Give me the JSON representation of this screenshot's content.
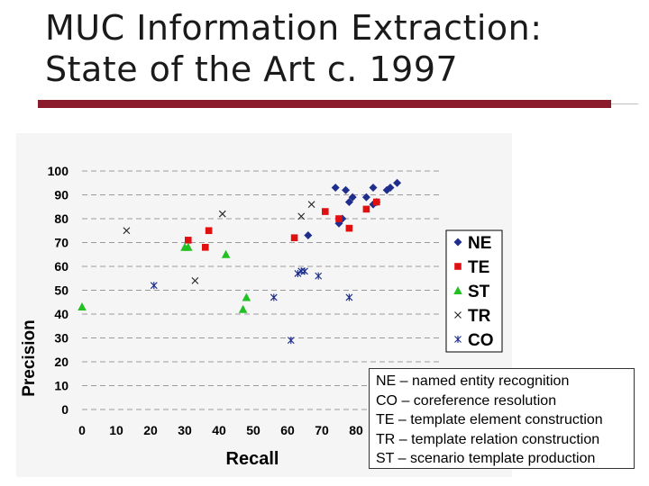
{
  "slide": {
    "title_line1": "MUC Information Extraction:",
    "title_line2": "State of the Art c. 1997",
    "accent_color": "#8b1a2b"
  },
  "definitions": [
    "NE – named entity recognition",
    "CO – coreference resolution",
    "TE – template element construction",
    "TR – template relation construction",
    "ST – scenario template production"
  ],
  "chart_data": {
    "type": "scatter",
    "xlabel": "Recall",
    "ylabel": "Precision",
    "xlim": [
      0,
      100
    ],
    "ylim": [
      0,
      100
    ],
    "xticks": [
      0,
      10,
      20,
      30,
      40,
      50,
      60,
      70,
      80
    ],
    "yticks": [
      0,
      10,
      20,
      30,
      40,
      50,
      60,
      70,
      80,
      90,
      100
    ],
    "grid": "horizontal dashed",
    "legend_position": "right",
    "series": [
      {
        "name": "NE",
        "marker": "diamond",
        "color": "#1f2e8c",
        "points": [
          [
            66,
            73
          ],
          [
            74,
            93
          ],
          [
            77,
            92
          ],
          [
            75,
            78
          ],
          [
            76,
            80
          ],
          [
            78,
            87
          ],
          [
            79,
            89
          ],
          [
            83,
            89
          ],
          [
            85,
            86
          ],
          [
            85,
            93
          ],
          [
            86,
            87
          ],
          [
            89,
            92
          ],
          [
            90,
            93
          ],
          [
            92,
            95
          ]
        ]
      },
      {
        "name": "TE",
        "marker": "square",
        "color": "#e01010",
        "points": [
          [
            31,
            71
          ],
          [
            36,
            68
          ],
          [
            37,
            75
          ],
          [
            62,
            72
          ],
          [
            71,
            83
          ],
          [
            75,
            80
          ],
          [
            78,
            76
          ],
          [
            83,
            84
          ],
          [
            86,
            87
          ]
        ]
      },
      {
        "name": "ST",
        "marker": "triangle",
        "color": "#22c022",
        "points": [
          [
            0,
            43
          ],
          [
            30,
            68
          ],
          [
            31,
            68
          ],
          [
            42,
            65
          ],
          [
            47,
            42
          ],
          [
            48,
            47
          ]
        ]
      },
      {
        "name": "TR",
        "marker": "x",
        "color": "#222222",
        "points": [
          [
            13,
            75
          ],
          [
            33,
            54
          ],
          [
            41,
            82
          ],
          [
            64,
            81
          ],
          [
            67,
            86
          ]
        ]
      },
      {
        "name": "CO",
        "marker": "asterisk",
        "color": "#1a2a88",
        "points": [
          [
            21,
            52
          ],
          [
            56,
            47
          ],
          [
            61,
            29
          ],
          [
            63,
            57
          ],
          [
            64,
            58
          ],
          [
            65,
            58
          ],
          [
            69,
            56
          ],
          [
            78,
            47
          ]
        ]
      }
    ]
  }
}
